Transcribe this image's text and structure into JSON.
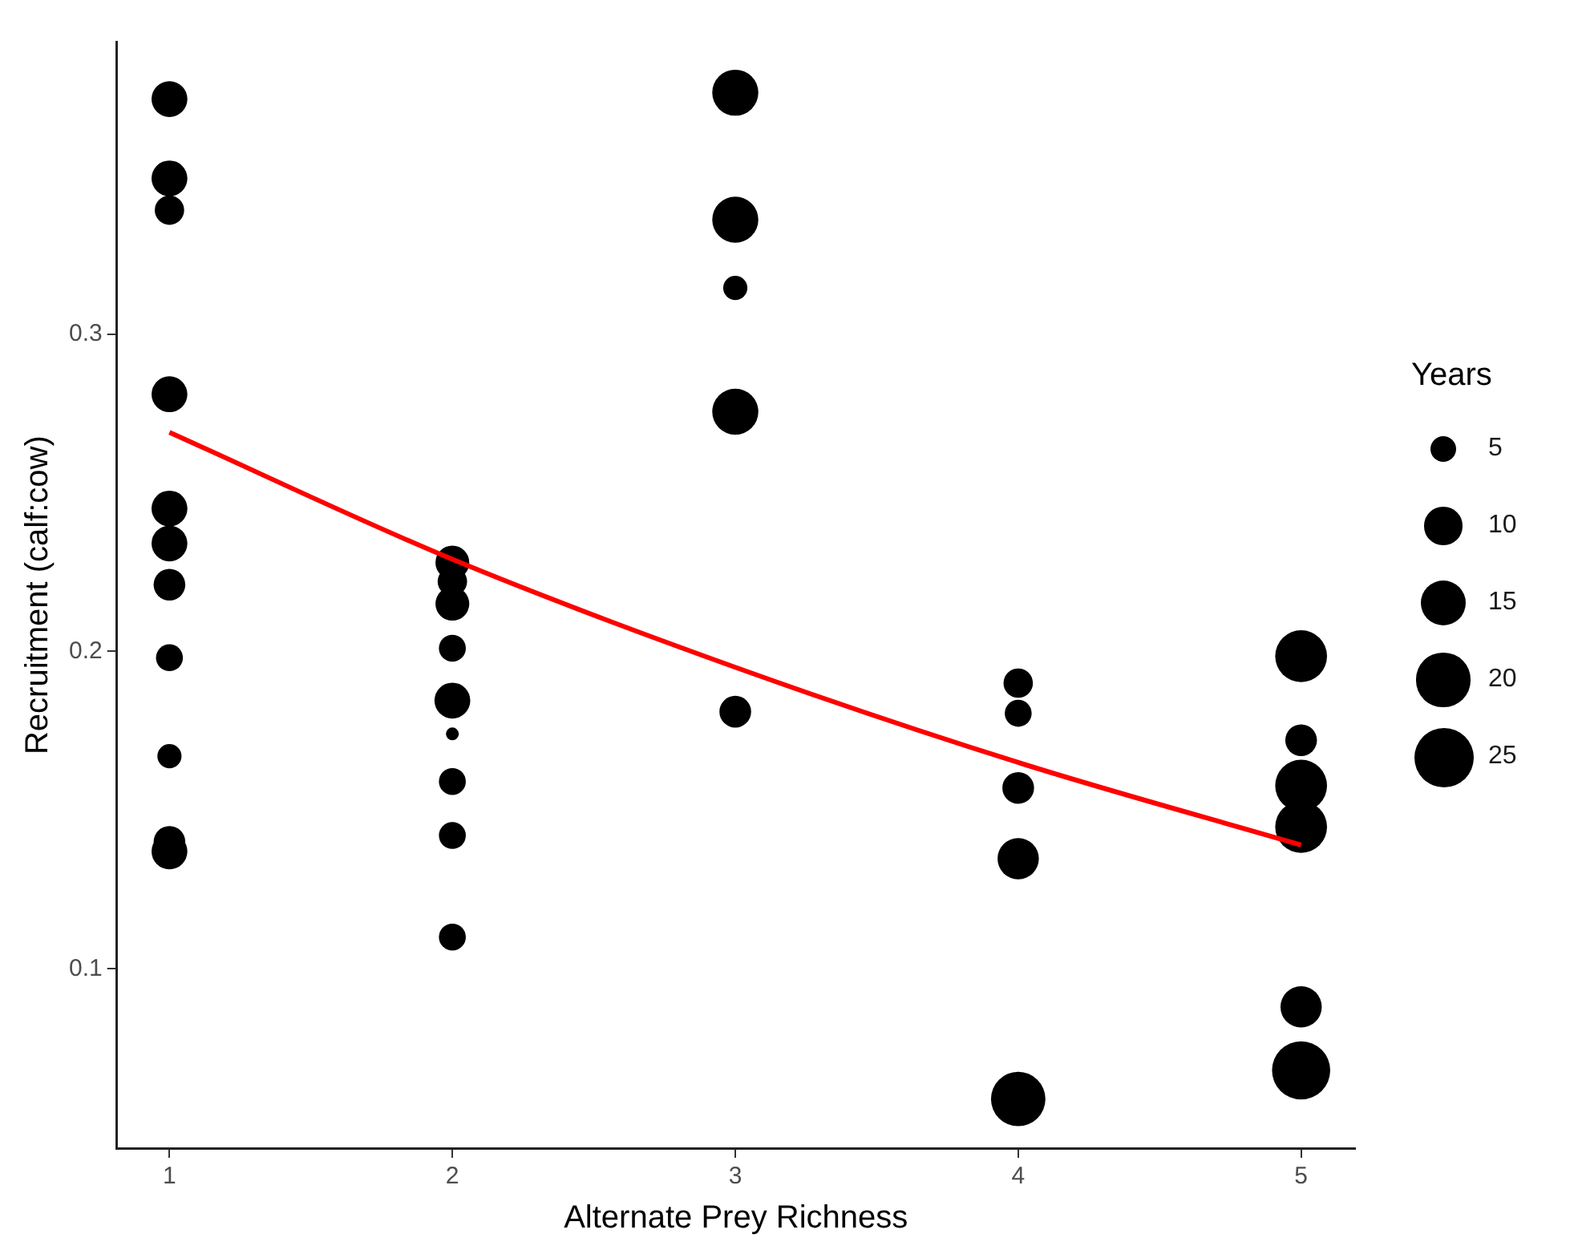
{
  "chart_data": {
    "type": "bubble",
    "xlabel": "Alternate Prey Richness",
    "ylabel": "Recruitment (calf:cow)",
    "legend_title": "Years",
    "xlim": [
      0.814,
      5.19
    ],
    "xticks": [
      1,
      2,
      3,
      4,
      5
    ],
    "ylim": [
      0.0435,
      0.392
    ],
    "yticks": [
      0.1,
      0.2,
      0.3
    ],
    "grid": false,
    "size_legend": [
      5,
      10,
      15,
      20,
      25
    ],
    "series": [
      {
        "color": "#000000",
        "x": [
          1,
          1,
          1,
          1,
          1,
          1,
          1,
          1,
          1,
          1,
          1,
          2,
          2,
          2,
          2,
          2,
          2,
          2,
          2,
          2,
          3,
          3,
          3,
          3,
          3,
          4,
          4,
          4,
          4,
          4,
          5,
          5,
          5,
          5,
          5,
          5
        ],
        "values": [
          0.374,
          0.349,
          0.339,
          0.281,
          0.245,
          0.234,
          0.221,
          0.198,
          0.167,
          0.14,
          0.137,
          0.228,
          0.222,
          0.215,
          0.201,
          0.1845,
          0.174,
          0.159,
          0.142,
          0.11,
          0.376,
          0.336,
          0.3145,
          0.2755,
          0.181,
          0.19,
          0.1805,
          0.157,
          0.1347,
          0.059,
          0.1985,
          0.172,
          0.1577,
          0.1447,
          0.088,
          0.068
        ],
        "sizes": [
          9,
          9,
          6,
          9,
          9,
          9,
          7,
          5,
          4,
          7,
          9,
          8,
          6,
          8,
          5,
          9,
          1,
          5,
          5,
          5,
          15,
          15,
          4,
          15,
          7,
          6,
          5,
          7,
          12,
          21,
          19,
          7,
          19,
          19,
          12,
          24
        ]
      },
      {
        "type": "line",
        "color": "#ff0000",
        "x": [
          1,
          2,
          3,
          4,
          5
        ],
        "values": [
          0.269,
          0.229,
          0.195,
          0.165,
          0.139
        ]
      }
    ]
  }
}
